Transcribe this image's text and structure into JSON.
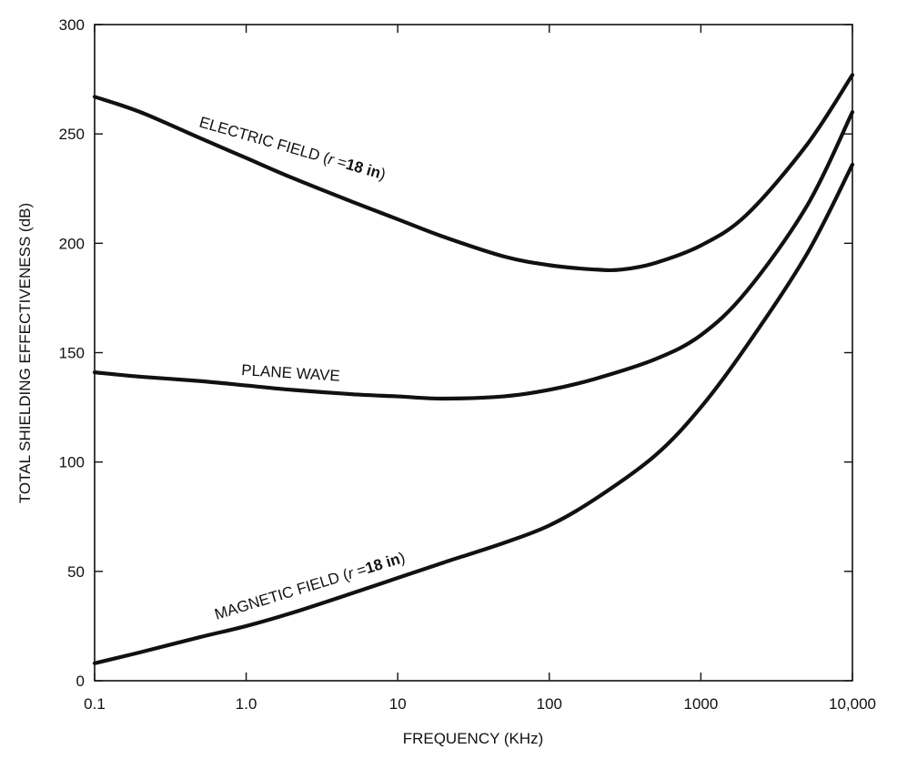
{
  "chart_data": {
    "type": "line",
    "title": "",
    "xlabel": "FREQUENCY (KHz)",
    "ylabel": "TOTAL SHIELDING EFFECTIVENESS (dB)",
    "xscale": "log",
    "xlim": [
      0.1,
      10000
    ],
    "ylim": [
      0,
      300
    ],
    "x_ticks": [
      0.1,
      1,
      10,
      100,
      1000,
      10000
    ],
    "x_tick_labels": [
      "0.1",
      "1.0",
      "10",
      "100",
      "1000",
      "10,000"
    ],
    "y_ticks": [
      0,
      50,
      100,
      150,
      200,
      250,
      300
    ],
    "y_tick_labels": [
      "0",
      "50",
      "100",
      "150",
      "200",
      "250",
      "300"
    ],
    "grid": false,
    "legend": "none",
    "line_color": "#111111",
    "series": [
      {
        "name": "ELECTRIC FIELD (r=18in)",
        "label_parts": [
          "ELECTRIC FIELD (",
          "r",
          " =",
          "18 in",
          ")"
        ],
        "x": [
          0.1,
          0.2,
          0.5,
          1,
          2,
          5,
          10,
          20,
          50,
          100,
          200,
          300,
          500,
          1000,
          2000,
          5000,
          10000
        ],
        "y": [
          267,
          260,
          248,
          239,
          230,
          219,
          211,
          203,
          194,
          190,
          188,
          188,
          191,
          199,
          213,
          245,
          277
        ]
      },
      {
        "name": "PLANE WAVE",
        "label_parts": [
          "PLANE WAVE"
        ],
        "x": [
          0.1,
          0.2,
          0.5,
          1,
          2,
          5,
          10,
          20,
          50,
          100,
          200,
          500,
          1000,
          2000,
          5000,
          10000
        ],
        "y": [
          141,
          139,
          137,
          135,
          133,
          131,
          130,
          129,
          130,
          133,
          138,
          147,
          158,
          178,
          217,
          260
        ]
      },
      {
        "name": "MAGNETIC FIELD (r=18 in)",
        "label_parts": [
          "MAGNETIC FIELD (",
          "r",
          " =",
          "18 in",
          ")"
        ],
        "x": [
          0.1,
          0.2,
          0.5,
          1,
          2,
          5,
          10,
          20,
          50,
          100,
          200,
          500,
          1000,
          2000,
          5000,
          10000
        ],
        "y": [
          8,
          13,
          20,
          25,
          31,
          40,
          47,
          54,
          63,
          71,
          83,
          103,
          125,
          153,
          195,
          236
        ]
      }
    ]
  }
}
